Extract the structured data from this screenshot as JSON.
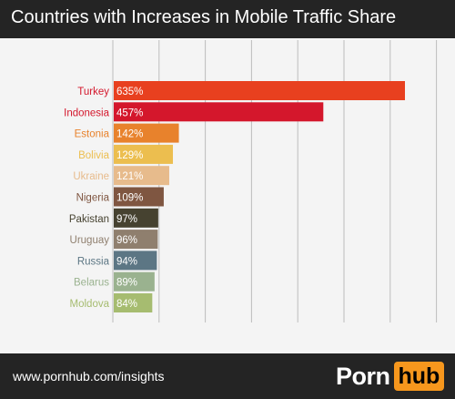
{
  "header": {
    "title": "Countries with Increases in Mobile Traffic Share"
  },
  "footer": {
    "url": "www.pornhub.com/insights",
    "logo_left": "Porn",
    "logo_right": "hub"
  },
  "colors": {
    "header_bg": "#242424",
    "plot_bg": "#f4f4f4",
    "gridline": "#bdbdbd",
    "logo_accent": "#f7971d"
  },
  "chart_data": {
    "type": "bar",
    "orientation": "horizontal",
    "title": "Countries with Increases in Mobile Traffic Share",
    "categories": [
      "Turkey",
      "Indonesia",
      "Estonia",
      "Bolivia",
      "Ukraine",
      "Nigeria",
      "Pakistan",
      "Uruguay",
      "Russia",
      "Belarus",
      "Moldova"
    ],
    "values": [
      635,
      457,
      142,
      129,
      121,
      109,
      97,
      96,
      94,
      89,
      84
    ],
    "labels": [
      "635%",
      "457%",
      "142%",
      "129%",
      "121%",
      "109%",
      "97%",
      "96%",
      "94%",
      "89%",
      "84%"
    ],
    "bar_colors": [
      "#e8401f",
      "#d4172c",
      "#e8822c",
      "#ecbe4f",
      "#e7bb8c",
      "#7f5641",
      "#464230",
      "#8f7f6e",
      "#5c7684",
      "#9ab28f",
      "#a6bc70"
    ],
    "label_colors": [
      "#d4172c",
      "#d4172c",
      "#e8822c",
      "#ecbe4f",
      "#e7bb8c",
      "#7f5641",
      "#464230",
      "#8f7f6e",
      "#5c7684",
      "#9ab28f",
      "#a6bc70"
    ],
    "xlim": [
      0,
      650
    ],
    "grid": true,
    "gridline_count": 7,
    "xlabel": "",
    "ylabel": ""
  }
}
